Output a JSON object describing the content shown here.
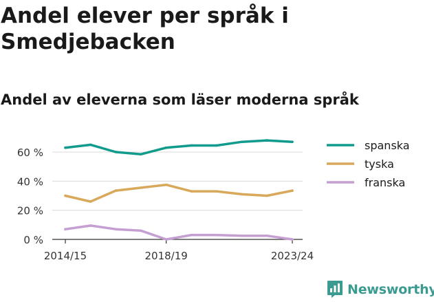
{
  "title": "Andel elever per språk i Smedjebacken",
  "subtitle": "Andel av eleverna som läser moderna språk",
  "brand": {
    "name": "Newsworthy",
    "icon": "newsworthy-logo-icon",
    "color": "#3b9b91"
  },
  "chart_data": {
    "type": "line",
    "x": [
      "2014/15",
      "2015/16",
      "2016/17",
      "2017/18",
      "2018/19",
      "2019/20",
      "2020/21",
      "2021/22",
      "2022/23",
      "2023/24"
    ],
    "xticks": [
      "2014/15",
      "2018/19",
      "2023/24"
    ],
    "yticks": [
      "0 %",
      "20 %",
      "40 %",
      "60 %"
    ],
    "ylim": [
      0,
      70
    ],
    "grid": true,
    "legend_position": "right",
    "series": [
      {
        "name": "spanska",
        "color": "#109b8c",
        "values": [
          63,
          65,
          60,
          58.5,
          63,
          64.5,
          64.5,
          67,
          68,
          67
        ]
      },
      {
        "name": "tyska",
        "color": "#d8a95b",
        "values": [
          30,
          26,
          33.5,
          35.5,
          37.5,
          33,
          33,
          31,
          30,
          33.5
        ]
      },
      {
        "name": "franska",
        "color": "#c59fd2",
        "values": [
          7,
          9.5,
          7,
          6,
          0,
          3,
          3,
          2.5,
          2.5,
          0
        ]
      }
    ]
  }
}
